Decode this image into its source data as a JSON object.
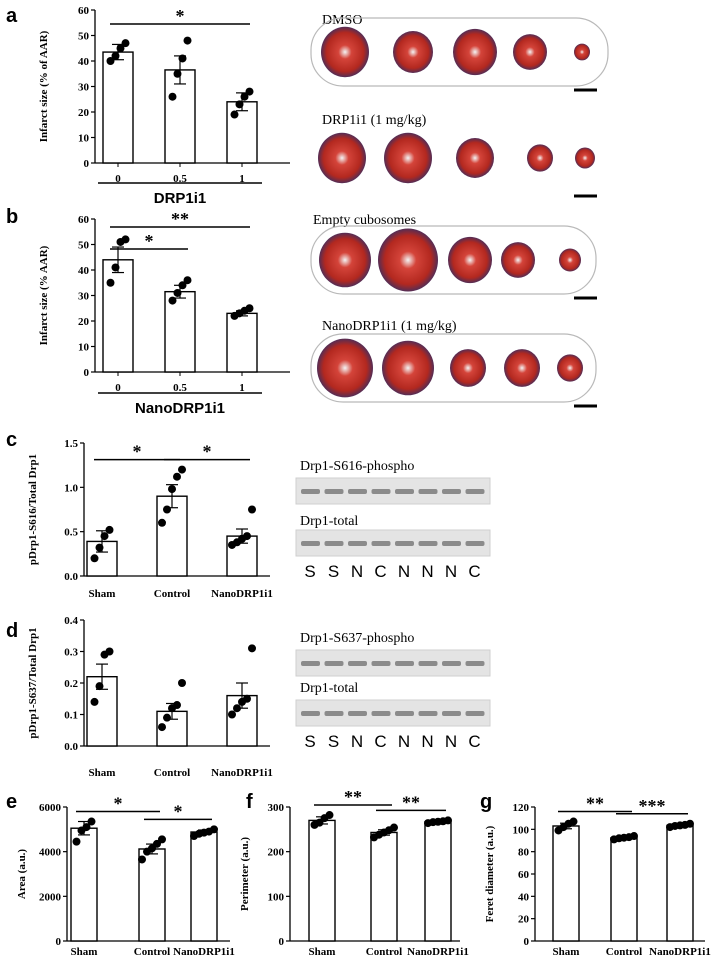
{
  "colors": {
    "heart_red": "#c7352c",
    "heart_blue": "#1e2a6b",
    "blot_bg": "#e4e4e4",
    "blot_band": "#6e6e6e"
  },
  "chart_data": [
    {
      "id": "a",
      "type": "bar",
      "panel": "a",
      "categories": [
        "0",
        "0.5",
        "1"
      ],
      "values": [
        43.5,
        36.5,
        24
      ],
      "errors": [
        3,
        5.5,
        3.5
      ],
      "points": [
        [
          40,
          42,
          45,
          47
        ],
        [
          26,
          35,
          41,
          48
        ],
        [
          19,
          23,
          26,
          28
        ]
      ],
      "ylabel": "Infarct size (% of AAR)",
      "xlabel": "DRP1i1",
      "ylim": [
        0,
        60
      ],
      "yticks": [
        0,
        10,
        20,
        30,
        40,
        50,
        60
      ],
      "significance": [
        {
          "from": 0,
          "to": 2,
          "label": "*",
          "level": 0
        }
      ]
    },
    {
      "id": "b",
      "type": "bar",
      "panel": "b",
      "categories": [
        "0",
        "0.5",
        "1"
      ],
      "values": [
        44,
        31.5,
        23
      ],
      "errors": [
        5,
        2.5,
        1
      ],
      "points": [
        [
          35,
          41,
          51,
          52
        ],
        [
          28,
          31,
          34,
          36
        ],
        [
          22,
          23,
          24,
          25
        ]
      ],
      "ylabel": "Infarct size (% AAR)",
      "xlabel": "NanoDRP1i1",
      "ylim": [
        0,
        60
      ],
      "yticks": [
        0,
        10,
        20,
        30,
        40,
        50,
        60
      ],
      "significance": [
        {
          "from": 0,
          "to": 1,
          "label": "*",
          "level": 0
        },
        {
          "from": 0,
          "to": 2,
          "label": "**",
          "level": 1
        }
      ]
    },
    {
      "id": "c",
      "type": "bar",
      "panel": "c",
      "categories": [
        "Sham",
        "Control",
        "NanoDRP1i1"
      ],
      "values": [
        0.39,
        0.9,
        0.45
      ],
      "errors": [
        0.12,
        0.13,
        0.08
      ],
      "points": [
        [
          0.2,
          0.32,
          0.45,
          0.52
        ],
        [
          0.6,
          0.75,
          0.98,
          1.12,
          1.2
        ],
        [
          0.35,
          0.38,
          0.42,
          0.45,
          0.75
        ]
      ],
      "ylabel": "pDrp1-S616/Total Drp1",
      "xlabel": "",
      "ylim": [
        0,
        1.5
      ],
      "yticks": [
        0.0,
        0.5,
        1.0,
        1.5
      ],
      "yfmt": 1,
      "significance": [
        {
          "from": 0,
          "to": 1,
          "label": "*",
          "level": 0
        },
        {
          "from": 1,
          "to": 2,
          "label": "*",
          "level": 0
        }
      ]
    },
    {
      "id": "d",
      "type": "bar",
      "panel": "d",
      "categories": [
        "Sham",
        "Control",
        "NanoDRP1i1"
      ],
      "values": [
        0.22,
        0.11,
        0.16
      ],
      "errors": [
        0.04,
        0.025,
        0.04
      ],
      "points": [
        [
          0.14,
          0.19,
          0.29,
          0.3
        ],
        [
          0.06,
          0.09,
          0.12,
          0.13,
          0.2
        ],
        [
          0.1,
          0.12,
          0.14,
          0.15,
          0.31
        ]
      ],
      "ylabel": "pDrp1-S637/Total Drp1",
      "xlabel": "",
      "ylim": [
        0,
        0.4
      ],
      "yticks": [
        0.0,
        0.1,
        0.2,
        0.3,
        0.4
      ],
      "yfmt": 1,
      "significance": []
    },
    {
      "id": "e",
      "type": "bar",
      "panel": "e",
      "categories": [
        "Sham",
        "Control",
        "NanoDRP1i1"
      ],
      "values": [
        5050,
        4120,
        4880
      ],
      "errors": [
        300,
        220,
        90
      ],
      "points": [
        [
          4450,
          4950,
          5100,
          5350
        ],
        [
          3650,
          4000,
          4150,
          4350,
          4550
        ],
        [
          4700,
          4800,
          4850,
          4900,
          5000
        ]
      ],
      "ylabel": "Area (a.u.)",
      "xlabel": "",
      "ylim": [
        0,
        6000
      ],
      "yticks": [
        0,
        2000,
        4000,
        6000
      ],
      "significance": [
        {
          "from": 0,
          "to": 1,
          "label": "*",
          "level": 0
        },
        {
          "from": 1,
          "to": 2,
          "label": "*",
          "level": 0
        }
      ]
    },
    {
      "id": "f",
      "type": "bar",
      "panel": "f",
      "categories": [
        "Sham",
        "Control",
        "NanoDRP1i1"
      ],
      "values": [
        270,
        243,
        267
      ],
      "errors": [
        8,
        6,
        2
      ],
      "points": [
        [
          260,
          265,
          275,
          282
        ],
        [
          232,
          238,
          243,
          248,
          254
        ],
        [
          264,
          266,
          267,
          268,
          270
        ]
      ],
      "ylabel": "Perimeter (a.u.)",
      "xlabel": "",
      "ylim": [
        0,
        300
      ],
      "yticks": [
        0,
        100,
        200,
        300
      ],
      "significance": [
        {
          "from": 0,
          "to": 1,
          "label": "**",
          "level": 0
        },
        {
          "from": 1,
          "to": 2,
          "label": "**",
          "level": 0
        }
      ]
    },
    {
      "id": "g",
      "type": "bar",
      "panel": "g",
      "categories": [
        "Sham",
        "Control",
        "NanoDRP1i1"
      ],
      "values": [
        103,
        92.5,
        103.5
      ],
      "errors": [
        2.5,
        1,
        0.7
      ],
      "points": [
        [
          99,
          102,
          105,
          107
        ],
        [
          91,
          92,
          92.5,
          93,
          94
        ],
        [
          102,
          103,
          103.5,
          104,
          105
        ]
      ],
      "ylabel": "Feret diameter (a.u.)",
      "xlabel": "",
      "ylim": [
        0,
        120
      ],
      "yticks": [
        0,
        20,
        40,
        60,
        80,
        100,
        120
      ],
      "significance": [
        {
          "from": 0,
          "to": 1,
          "label": "**",
          "level": 0
        },
        {
          "from": 1,
          "to": 2,
          "label": "***",
          "level": 0
        }
      ]
    }
  ],
  "heart_images": {
    "labels": [
      "DMSO",
      "DRP1i1  (1 mg/kg)",
      "Empty  cubosomes",
      "NanoDRP1i1  (1 mg/kg)"
    ]
  },
  "blots": {
    "c": {
      "top_label": "Drp1-S616-phospho",
      "bottom_label": "Drp1-total",
      "lanes": [
        "S",
        "S",
        "N",
        "C",
        "N",
        "N",
        "N",
        "C"
      ]
    },
    "d": {
      "top_label": "Drp1-S637-phospho",
      "bottom_label": "Drp1-total",
      "lanes": [
        "S",
        "S",
        "N",
        "C",
        "N",
        "N",
        "N",
        "C"
      ]
    }
  }
}
